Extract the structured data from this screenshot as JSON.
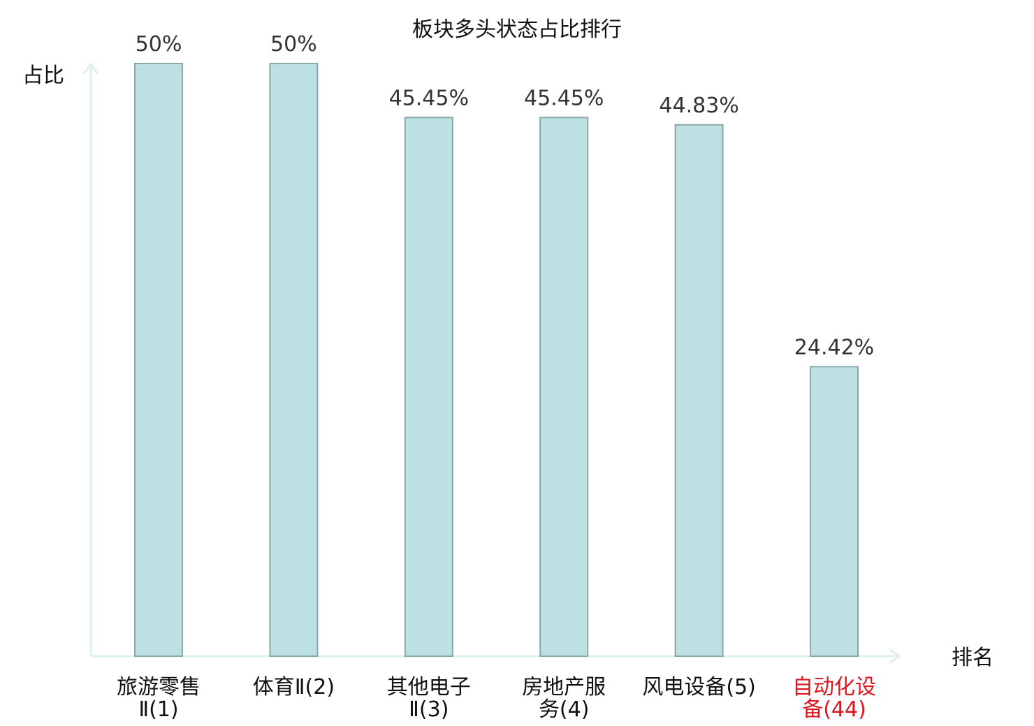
{
  "chart_data": {
    "type": "bar",
    "title": "板块多头状态占比排行",
    "ylabel": "占比",
    "xlabel": "排名",
    "ylim": [
      0,
      50
    ],
    "grid": false,
    "categories": [
      [
        "旅游零售",
        "Ⅱ(1)"
      ],
      [
        "体育Ⅱ(2)"
      ],
      [
        "其他电子",
        "Ⅱ(3)"
      ],
      [
        "房地产服",
        "务(4)"
      ],
      [
        "风电设备(5)"
      ],
      [
        "自动化设",
        "备(44)"
      ]
    ],
    "values": [
      50,
      50,
      45.45,
      45.45,
      44.83,
      24.42
    ],
    "value_labels": [
      "50%",
      "50%",
      "45.45%",
      "45.45%",
      "44.83%",
      "24.42%"
    ],
    "highlight_index": 5
  },
  "colors": {
    "bar_fill": "#bde0e3",
    "bar_stroke": "#8aa6aa",
    "axis": "#dcf0ed",
    "label": "#111111",
    "value_label": "#333333",
    "highlight": "#e0141e"
  }
}
